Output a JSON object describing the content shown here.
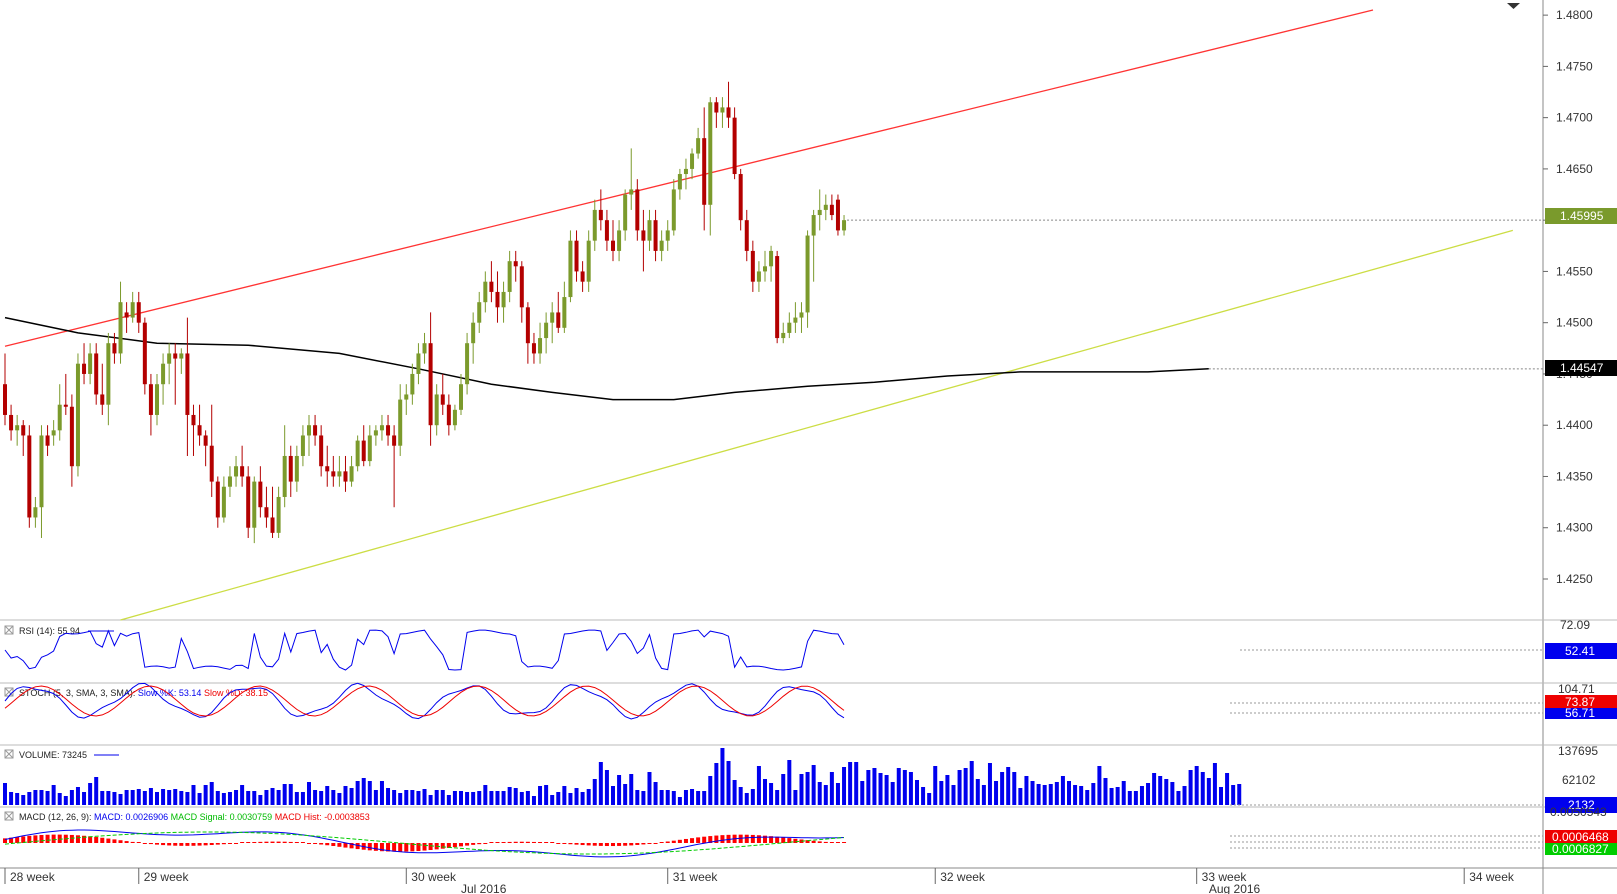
{
  "chart_data": {
    "type": "candlestick",
    "main": {
      "y_ticks": [
        "1.4800",
        "1.4750",
        "1.4700",
        "1.4650",
        "1.4600",
        "1.4550",
        "1.4500",
        "1.4450",
        "1.4400",
        "1.4350",
        "1.4300",
        "1.4250"
      ],
      "ylim": [
        1.421,
        1.4805
      ],
      "price_badge": "1.45995",
      "ma_badge": "1.44547",
      "candles": [
        [
          1.444,
          1.447,
          1.44,
          1.441
        ],
        [
          1.441,
          1.442,
          1.4385,
          1.4395
        ],
        [
          1.4395,
          1.441,
          1.438,
          1.44
        ],
        [
          1.44,
          1.4405,
          1.437,
          1.439
        ],
        [
          1.439,
          1.44,
          1.43,
          1.431
        ],
        [
          1.431,
          1.433,
          1.43,
          1.432
        ],
        [
          1.432,
          1.44,
          1.429,
          1.439
        ],
        [
          1.439,
          1.44,
          1.437,
          1.438
        ],
        [
          1.439,
          1.4405,
          1.438,
          1.4395
        ],
        [
          1.4395,
          1.444,
          1.4385,
          1.442
        ],
        [
          1.442,
          1.445,
          1.441,
          1.4418
        ],
        [
          1.4418,
          1.443,
          1.434,
          1.436
        ],
        [
          1.436,
          1.447,
          1.435,
          1.446
        ],
        [
          1.446,
          1.448,
          1.444,
          1.445
        ],
        [
          1.445,
          1.448,
          1.444,
          1.447
        ],
        [
          1.447,
          1.448,
          1.442,
          1.443
        ],
        [
          1.443,
          1.446,
          1.441,
          1.442
        ],
        [
          1.442,
          1.449,
          1.44,
          1.448
        ],
        [
          1.448,
          1.449,
          1.446,
          1.447
        ],
        [
          1.447,
          1.454,
          1.446,
          1.452
        ],
        [
          1.451,
          1.452,
          1.449,
          1.4505
        ],
        [
          1.4505,
          1.453,
          1.45,
          1.452
        ],
        [
          1.452,
          1.453,
          1.449,
          1.45
        ],
        [
          1.45,
          1.4505,
          1.443,
          1.444
        ],
        [
          1.444,
          1.445,
          1.439,
          1.441
        ],
        [
          1.441,
          1.445,
          1.44,
          1.444
        ],
        [
          1.444,
          1.447,
          1.442,
          1.446
        ],
        [
          1.446,
          1.448,
          1.444,
          1.447
        ],
        [
          1.447,
          1.448,
          1.442,
          1.4465
        ],
        [
          1.4465,
          1.4475,
          1.445,
          1.447
        ],
        [
          1.447,
          1.4505,
          1.437,
          1.441
        ],
        [
          1.441,
          1.442,
          1.437,
          1.44
        ],
        [
          1.44,
          1.442,
          1.438,
          1.439
        ],
        [
          1.439,
          1.4395,
          1.436,
          1.438
        ],
        [
          1.438,
          1.442,
          1.433,
          1.4345
        ],
        [
          1.4345,
          1.435,
          1.43,
          1.431
        ],
        [
          1.431,
          1.435,
          1.4305,
          1.434
        ],
        [
          1.434,
          1.436,
          1.433,
          1.435
        ],
        [
          1.435,
          1.437,
          1.434,
          1.436
        ],
        [
          1.436,
          1.438,
          1.434,
          1.435
        ],
        [
          1.435,
          1.436,
          1.429,
          1.43
        ],
        [
          1.43,
          1.435,
          1.4285,
          1.4345
        ],
        [
          1.4345,
          1.436,
          1.431,
          1.432
        ],
        [
          1.432,
          1.434,
          1.43,
          1.431
        ],
        [
          1.431,
          1.434,
          1.429,
          1.4295
        ],
        [
          1.4295,
          1.434,
          1.429,
          1.433
        ],
        [
          1.433,
          1.44,
          1.432,
          1.437
        ],
        [
          1.437,
          1.438,
          1.433,
          1.4345
        ],
        [
          1.4345,
          1.438,
          1.4335,
          1.437
        ],
        [
          1.437,
          1.44,
          1.436,
          1.439
        ],
        [
          1.439,
          1.441,
          1.437,
          1.44
        ],
        [
          1.44,
          1.441,
          1.438,
          1.439
        ],
        [
          1.439,
          1.44,
          1.435,
          1.436
        ],
        [
          1.436,
          1.438,
          1.434,
          1.4355
        ],
        [
          1.4355,
          1.437,
          1.434,
          1.435
        ],
        [
          1.435,
          1.437,
          1.434,
          1.4355
        ],
        [
          1.4355,
          1.437,
          1.4335,
          1.4345
        ],
        [
          1.4345,
          1.437,
          1.434,
          1.436
        ],
        [
          1.436,
          1.439,
          1.4355,
          1.4385
        ],
        [
          1.4385,
          1.44,
          1.436,
          1.4365
        ],
        [
          1.4365,
          1.44,
          1.436,
          1.439
        ],
        [
          1.439,
          1.44,
          1.438,
          1.4395
        ],
        [
          1.4395,
          1.441,
          1.4385,
          1.44
        ],
        [
          1.44,
          1.441,
          1.438,
          1.439
        ],
        [
          1.439,
          1.44,
          1.432,
          1.438
        ],
        [
          1.438,
          1.444,
          1.437,
          1.4425
        ],
        [
          1.4425,
          1.444,
          1.441,
          1.443
        ],
        [
          1.443,
          1.446,
          1.442,
          1.445
        ],
        [
          1.445,
          1.448,
          1.444,
          1.447
        ],
        [
          1.447,
          1.449,
          1.446,
          1.448
        ],
        [
          1.448,
          1.451,
          1.438,
          1.44
        ],
        [
          1.44,
          1.444,
          1.439,
          1.443
        ],
        [
          1.443,
          1.445,
          1.441,
          1.442
        ],
        [
          1.442,
          1.443,
          1.439,
          1.44
        ],
        [
          1.44,
          1.442,
          1.4395,
          1.4415
        ],
        [
          1.4415,
          1.445,
          1.441,
          1.444
        ],
        [
          1.444,
          1.449,
          1.443,
          1.448
        ],
        [
          1.448,
          1.451,
          1.446,
          1.45
        ],
        [
          1.45,
          1.453,
          1.449,
          1.452
        ],
        [
          1.452,
          1.455,
          1.451,
          1.454
        ],
        [
          1.454,
          1.456,
          1.452,
          1.453
        ],
        [
          1.453,
          1.455,
          1.45,
          1.4515
        ],
        [
          1.4515,
          1.454,
          1.45,
          1.453
        ],
        [
          1.453,
          1.457,
          1.452,
          1.456
        ],
        [
          1.456,
          1.457,
          1.454,
          1.4555
        ],
        [
          1.4555,
          1.456,
          1.45,
          1.4515
        ],
        [
          1.4515,
          1.452,
          1.446,
          1.448
        ],
        [
          1.448,
          1.449,
          1.446,
          1.447
        ],
        [
          1.447,
          1.45,
          1.446,
          1.4485
        ],
        [
          1.4485,
          1.451,
          1.447,
          1.45
        ],
        [
          1.45,
          1.452,
          1.448,
          1.451
        ],
        [
          1.451,
          1.453,
          1.449,
          1.4495
        ],
        [
          1.4495,
          1.454,
          1.449,
          1.4525
        ],
        [
          1.4525,
          1.459,
          1.452,
          1.458
        ],
        [
          1.458,
          1.459,
          1.454,
          1.455
        ],
        [
          1.455,
          1.456,
          1.453,
          1.454
        ],
        [
          1.454,
          1.459,
          1.453,
          1.458
        ],
        [
          1.458,
          1.462,
          1.457,
          1.461
        ],
        [
          1.461,
          1.463,
          1.459,
          1.46
        ],
        [
          1.46,
          1.461,
          1.457,
          1.458
        ],
        [
          1.458,
          1.46,
          1.456,
          1.457
        ],
        [
          1.457,
          1.46,
          1.456,
          1.459
        ],
        [
          1.459,
          1.463,
          1.458,
          1.4625
        ],
        [
          1.4625,
          1.467,
          1.461,
          1.463
        ],
        [
          1.463,
          1.464,
          1.458,
          1.459
        ],
        [
          1.459,
          1.461,
          1.455,
          1.458
        ],
        [
          1.458,
          1.461,
          1.457,
          1.46
        ],
        [
          1.46,
          1.461,
          1.456,
          1.457
        ],
        [
          1.457,
          1.459,
          1.456,
          1.458
        ],
        [
          1.458,
          1.46,
          1.457,
          1.459
        ],
        [
          1.459,
          1.464,
          1.4585,
          1.463
        ],
        [
          1.463,
          1.465,
          1.462,
          1.4645
        ],
        [
          1.4645,
          1.466,
          1.463,
          1.465
        ],
        [
          1.465,
          1.467,
          1.464,
          1.4665
        ],
        [
          1.4665,
          1.469,
          1.466,
          1.468
        ],
        [
          1.468,
          1.471,
          1.459,
          1.4615
        ],
        [
          1.4615,
          1.472,
          1.4585,
          1.4715
        ],
        [
          1.4715,
          1.472,
          1.469,
          1.4705
        ],
        [
          1.4705,
          1.472,
          1.469,
          1.471
        ],
        [
          1.471,
          1.4735,
          1.469,
          1.47
        ],
        [
          1.47,
          1.471,
          1.464,
          1.4645
        ],
        [
          1.4645,
          1.465,
          1.459,
          1.46
        ],
        [
          1.46,
          1.461,
          1.456,
          1.457
        ],
        [
          1.457,
          1.458,
          1.453,
          1.454
        ],
        [
          1.454,
          1.456,
          1.453,
          1.455
        ],
        [
          1.455,
          1.457,
          1.454,
          1.4555
        ],
        [
          1.4555,
          1.4575,
          1.454,
          1.457
        ],
        [
          1.4565,
          1.457,
          1.448,
          1.4485
        ],
        [
          1.4485,
          1.45,
          1.448,
          1.449
        ],
        [
          1.449,
          1.451,
          1.4485,
          1.45
        ],
        [
          1.45,
          1.452,
          1.449,
          1.4505
        ],
        [
          1.4505,
          1.452,
          1.449,
          1.451
        ],
        [
          1.451,
          1.459,
          1.4495,
          1.4585
        ],
        [
          1.4585,
          1.461,
          1.454,
          1.4605
        ],
        [
          1.4605,
          1.463,
          1.459,
          1.461
        ],
        [
          1.461,
          1.4625,
          1.46,
          1.4615
        ],
        [
          1.4615,
          1.4625,
          1.46,
          1.4605
        ],
        [
          1.462,
          1.4625,
          1.4585,
          1.459
        ],
        [
          1.459,
          1.4605,
          1.4585,
          1.46
        ]
      ],
      "moving_average": [
        [
          0,
          1.4505
        ],
        [
          12,
          1.449
        ],
        [
          25,
          1.448
        ],
        [
          40,
          1.4478
        ],
        [
          55,
          1.447
        ],
        [
          68,
          1.4455
        ],
        [
          80,
          1.444
        ],
        [
          90,
          1.4432
        ],
        [
          100,
          1.4425
        ],
        [
          110,
          1.4425
        ],
        [
          120,
          1.4432
        ],
        [
          132,
          1.4438
        ],
        [
          143,
          1.4442
        ],
        [
          155,
          1.4448
        ],
        [
          167,
          1.4452
        ],
        [
          178,
          1.4452
        ],
        [
          188,
          1.4452
        ],
        [
          198,
          1.4455
        ]
      ],
      "trend_lines": [
        {
          "color": "#ff3333",
          "from": [
            0,
            1.4477
          ],
          "to": [
            225,
            1.4805
          ]
        },
        {
          "color": "#ccdd44",
          "from": [
            19,
            1.421
          ],
          "to": [
            248,
            1.459
          ]
        }
      ]
    },
    "x_labels": [
      {
        "text": "28 week",
        "i": 0
      },
      {
        "text": "29 week",
        "i": 22
      },
      {
        "text": "30 week",
        "i": 66
      },
      {
        "text": "31 week",
        "i": 109
      },
      {
        "text": "32 week",
        "i": 153
      },
      {
        "text": "33 week",
        "i": 196
      },
      {
        "text": "34 week",
        "i": 240
      }
    ],
    "month_labels": [
      {
        "text": "Jul 2016",
        "i": 75
      },
      {
        "text": "Aug 2016",
        "i": 198
      }
    ],
    "rsi": {
      "label": "RSI (14): 55.94",
      "top_tick": "72.09",
      "badge": "52.41"
    },
    "stoch": {
      "label_prefix": "STOCH (5, 3, SMA, 3, SMA):",
      "slow_k": "Slow %K: 53.14",
      "slow_d": "Slow %D: 38.15",
      "top_tick": "104.71",
      "badge_d": "73.87",
      "badge_k": "56.71"
    },
    "volume": {
      "label": "VOLUME: 73245",
      "top_tick": "137695",
      "mid_tick": "62102",
      "badge": "2132",
      "values": [
        22,
        13,
        12,
        10,
        13,
        15,
        15,
        14,
        20,
        12,
        9,
        15,
        18,
        13,
        22,
        28,
        14,
        14,
        13,
        11,
        15,
        15,
        16,
        14,
        17,
        13,
        16,
        15,
        16,
        14,
        13,
        20,
        12,
        20,
        23,
        14,
        12,
        13,
        15,
        20,
        14,
        14,
        10,
        15,
        17,
        15,
        21,
        21,
        13,
        13,
        23,
        15,
        14,
        19,
        15,
        12,
        19,
        17,
        24,
        27,
        24,
        15,
        24,
        17,
        15,
        12,
        15,
        15,
        14,
        16,
        10,
        15,
        15,
        10,
        14,
        14,
        13,
        13,
        14,
        20,
        14,
        14,
        14,
        18,
        17,
        13,
        14,
        9,
        19,
        20,
        10,
        13,
        19,
        12,
        17,
        13,
        16,
        26,
        43,
        35,
        19,
        30,
        21,
        31,
        15,
        14,
        33,
        23,
        15,
        15,
        14,
        8,
        15,
        16,
        14,
        14,
        29,
        42,
        57,
        44,
        25,
        18,
        12,
        16,
        39,
        26,
        22,
        15,
        31,
        45,
        15,
        31,
        33,
        40,
        23,
        20,
        33,
        22,
        38,
        43,
        43,
        24,
        35,
        37,
        32,
        30,
        23,
        37,
        35,
        33,
        25,
        18,
        12,
        39,
        24,
        30,
        20,
        35,
        37,
        44,
        26,
        20,
        42,
        24,
        33,
        38,
        33,
        17,
        29,
        24,
        21,
        20,
        21,
        23,
        29,
        24,
        20,
        19,
        15,
        22,
        39,
        27,
        17,
        18,
        24,
        14,
        14,
        19,
        22,
        32,
        29,
        26,
        23,
        14,
        19,
        35,
        39,
        33,
        27,
        42,
        18,
        32,
        20,
        21,
        19,
        30,
        42,
        38,
        20,
        15,
        20,
        12,
        16,
        14,
        33,
        12
      ]
    },
    "macd": {
      "label_prefix": "MACD (12, 26, 9):",
      "macd_text": "MACD: 0.0026906",
      "signal_text": "MACD Signal: 0.0030759",
      "hist_text": "MACD Hist: -0.0003853",
      "top_tick": "0.0050543",
      "badge_red": "0.0006468",
      "badge_green": "0.0006827"
    },
    "colors": {
      "up": "#7b9a2c",
      "down": "#b30000",
      "ma": "#000000",
      "rsi": "#0000ee",
      "stoch_k": "#0000ee",
      "stoch_d": "#ee0000",
      "volume": "#0000ee",
      "macd": "#0000ee",
      "signal": "#00cc00",
      "hist": "#ff0000",
      "badge_price": "#7a9a2c"
    }
  }
}
